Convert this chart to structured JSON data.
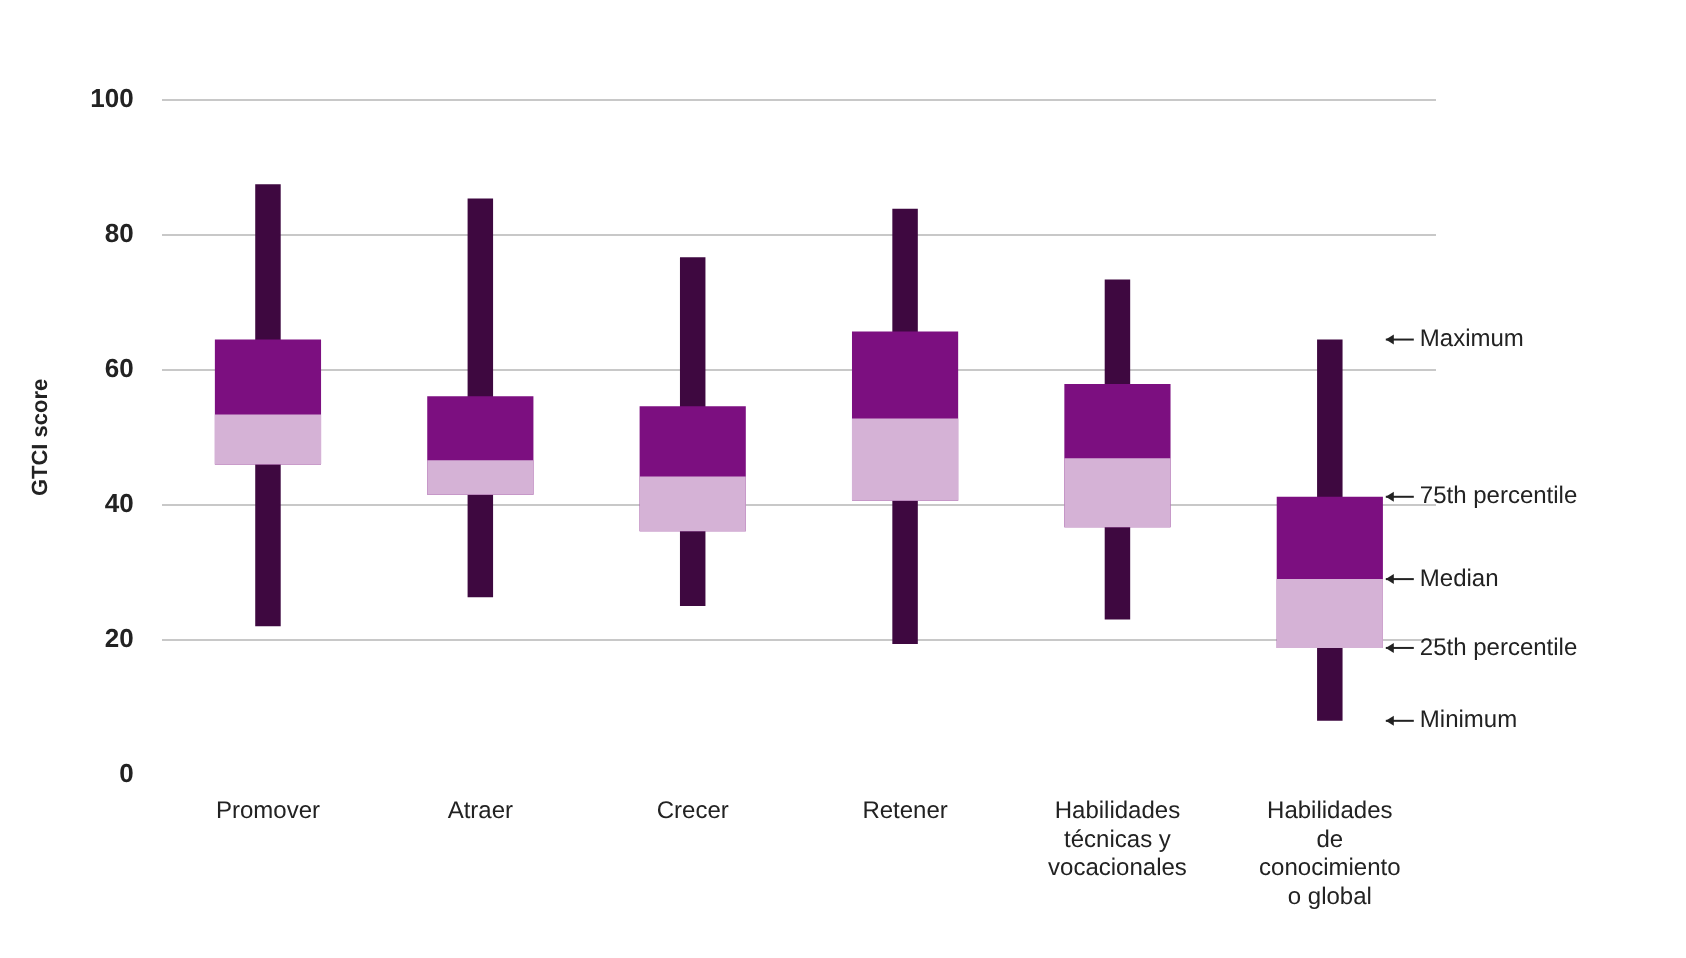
{
  "chart_data": {
    "type": "box",
    "ylabel": "GTCI score",
    "categories": [
      "Promover",
      "Atraer",
      "Crecer",
      "Retener",
      "Habilidades técnicas y vocacionales",
      "Habilidades de conocimiento o global"
    ],
    "series": [
      {
        "color": "#7c0f80",
        "boxes": [
          {
            "low": 22,
            "q1": 46,
            "median": 53.4,
            "q3": 64.5,
            "high": 87.5
          },
          {
            "low": 26.3,
            "q1": 41.5,
            "median": 46.6,
            "q3": 56.1,
            "high": 85.4
          },
          {
            "low": 25,
            "q1": 36.1,
            "median": 44.2,
            "q3": 54.6,
            "high": 76.7
          },
          {
            "low": 19.4,
            "q1": 40.6,
            "median": 52.8,
            "q3": 65.7,
            "high": 83.9
          },
          {
            "low": 23,
            "q1": 36.7,
            "median": 46.9,
            "q3": 57.9,
            "high": 73.4
          },
          {
            "low": 8,
            "q1": 18.8,
            "median": 29,
            "q3": 41.2,
            "high": 64.5
          }
        ]
      }
    ],
    "ylim": [
      0,
      100
    ],
    "yticks": [
      0,
      20,
      40,
      60,
      80,
      100
    ],
    "grid": "y",
    "legend": false,
    "annotations": [
      "Maximum",
      "75th percentile",
      "Median",
      "25th percentile",
      "Minimum"
    ]
  }
}
